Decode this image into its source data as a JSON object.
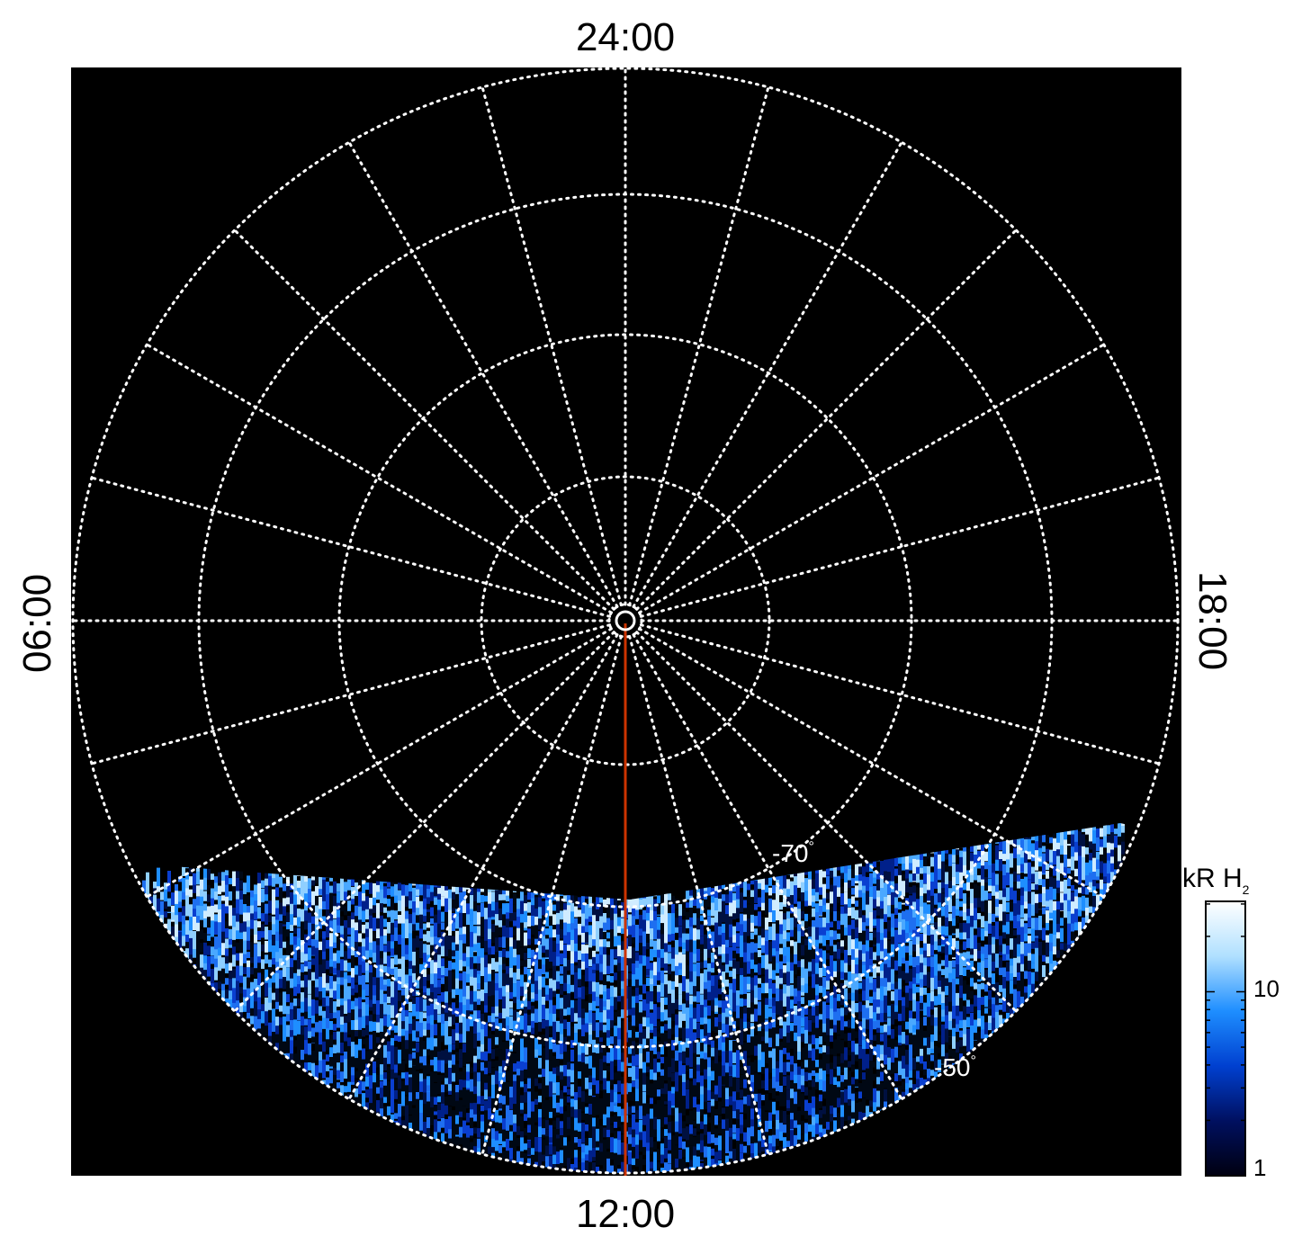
{
  "local_time_labels": {
    "top": "24:00",
    "bottom": "12:00",
    "left": "06:00",
    "right": "18:00"
  },
  "latitude_labels": [
    {
      "text": "-70",
      "degree_symbol": "°"
    },
    {
      "text": "-50",
      "degree_symbol": "°"
    }
  ],
  "colorbar": {
    "title_main": "kR H",
    "title_subscript": "2",
    "scale": "log",
    "tick_labels": [
      "1",
      "10"
    ],
    "color_stops": [
      "#000010",
      "#001060",
      "#0040d0",
      "#1e8eff",
      "#b0e0ff",
      "#ffffff"
    ]
  },
  "colors": {
    "background": "#000000",
    "grid": "#ffffff",
    "meridian_line": "#cc3300",
    "emission_dark": "#001040",
    "emission_mid": "#1e78f0",
    "emission_bright": "#9fd4ff"
  }
}
